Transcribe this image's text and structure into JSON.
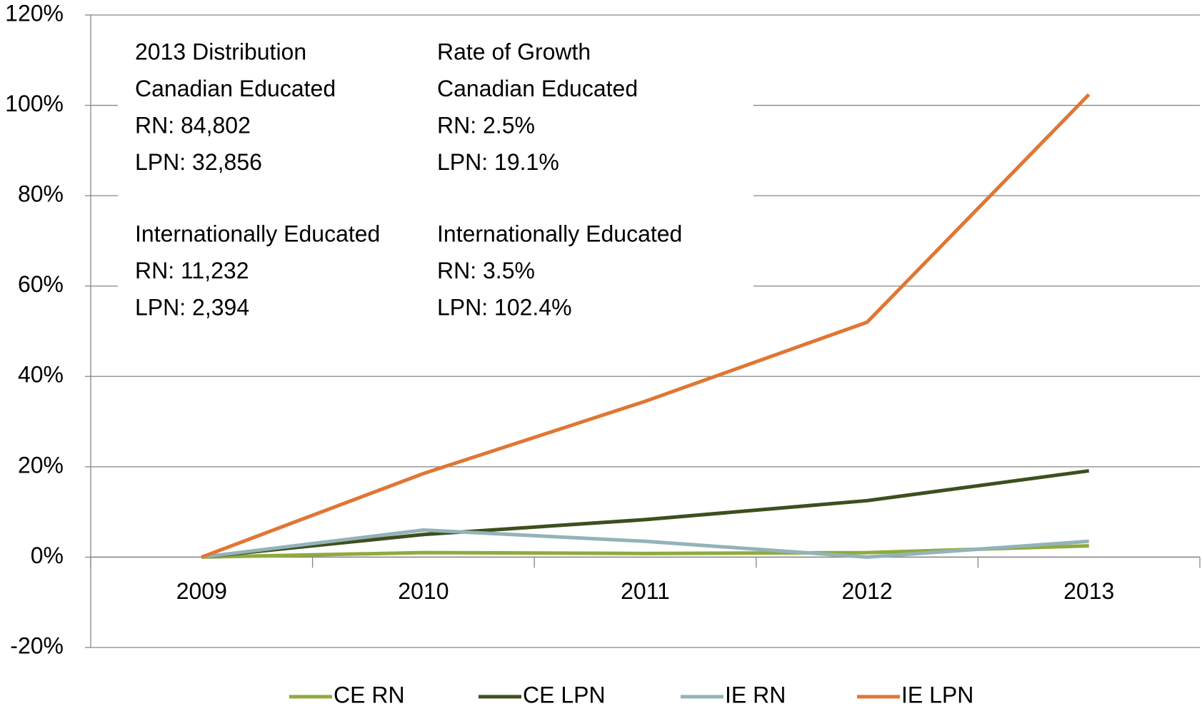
{
  "chart_data": {
    "type": "line",
    "categories": [
      "2009",
      "2010",
      "2011",
      "2012",
      "2013"
    ],
    "series": [
      {
        "name": "CE RN",
        "color": "#8faa3c",
        "values": [
          0,
          1,
          0.8,
          1,
          2.5
        ]
      },
      {
        "name": "CE LPN",
        "color": "#3d4f1e",
        "values": [
          0,
          5,
          8.3,
          12.5,
          19.1
        ]
      },
      {
        "name": "IE RN",
        "color": "#93b3b8",
        "values": [
          0,
          6,
          3.5,
          0,
          3.5
        ]
      },
      {
        "name": "IE LPN",
        "color": "#e07634",
        "values": [
          0,
          18.5,
          34.5,
          52,
          102.4
        ]
      }
    ],
    "ylim": [
      -20,
      120
    ],
    "yticks": [
      {
        "value": -20,
        "label": "-20%"
      },
      {
        "value": 0,
        "label": "0%"
      },
      {
        "value": 20,
        "label": "20%"
      },
      {
        "value": 40,
        "label": "40%"
      },
      {
        "value": 60,
        "label": "60%"
      },
      {
        "value": 80,
        "label": "80%"
      },
      {
        "value": 100,
        "label": "100%"
      },
      {
        "value": 120,
        "label": "120%"
      }
    ],
    "grid": true,
    "legend": "bottom",
    "annotations": [
      [
        "2013 Distribution",
        "Canadian Educated",
        "RN: 84,802",
        "LPN: 32,856"
      ],
      [
        "Internationally Educated",
        "RN: 11,232",
        "LPN: 2,394"
      ],
      [
        "Rate of Growth",
        "Canadian Educated",
        "RN: 2.5%",
        "LPN: 19.1%"
      ],
      [
        "Internationally Educated",
        "RN: 3.5%",
        "LPN: 102.4%"
      ]
    ]
  }
}
